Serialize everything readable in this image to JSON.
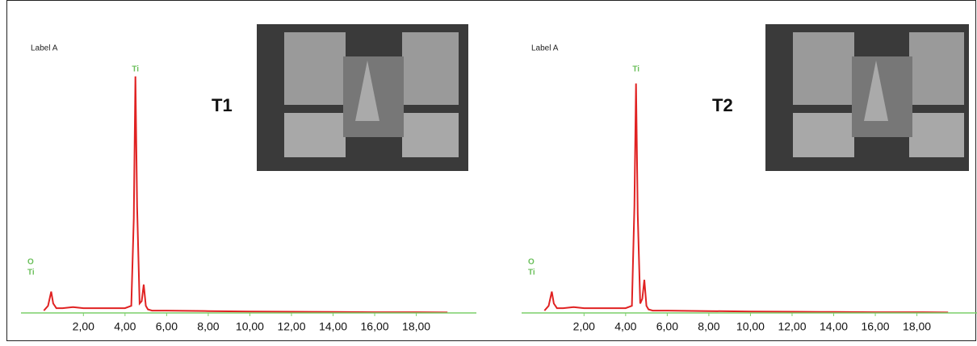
{
  "chart_data": [
    {
      "type": "line",
      "subtitle": "Label A",
      "title": "T1",
      "annotations": [
        "O",
        "Ti",
        "Ti"
      ],
      "x": [
        0.1,
        0.3,
        0.45,
        0.55,
        0.7,
        1.0,
        1.5,
        2.0,
        3.0,
        4.0,
        4.3,
        4.42,
        4.5,
        4.58,
        4.7,
        4.8,
        4.9,
        5.0,
        5.1,
        5.3,
        6.0,
        8.0,
        10.0,
        12.0,
        14.0,
        16.0,
        18.0,
        19.5
      ],
      "series": [
        {
          "name": "T1",
          "color": "#e02222",
          "values": [
            1,
            3,
            9,
            4,
            2,
            2,
            2.5,
            2,
            2,
            2,
            3,
            40,
            100,
            45,
            4,
            5,
            12,
            3,
            1.5,
            1,
            1,
            0.8,
            0.6,
            0.5,
            0.4,
            0.3,
            0.3,
            0.2
          ]
        }
      ],
      "xlim": [
        -1,
        20.5
      ],
      "ylim": [
        0,
        105
      ],
      "xticks": [
        {
          "value": 2,
          "label": "2,00"
        },
        {
          "value": 4,
          "label": "4,00"
        },
        {
          "value": 6,
          "label": "6,00"
        },
        {
          "value": 8,
          "label": "8,00"
        },
        {
          "value": 10,
          "label": "10,00"
        },
        {
          "value": 12,
          "label": "12,00"
        },
        {
          "value": 14,
          "label": "14,00"
        },
        {
          "value": 16,
          "label": "16,00"
        },
        {
          "value": 18,
          "label": "18,00"
        }
      ],
      "axis_color": "#7ccf6a"
    },
    {
      "type": "line",
      "subtitle": "Label A",
      "title": "T2",
      "annotations": [
        "O",
        "Ti",
        "Ti"
      ],
      "x": [
        0.1,
        0.3,
        0.45,
        0.55,
        0.7,
        1.0,
        1.5,
        2.0,
        3.0,
        4.0,
        4.3,
        4.42,
        4.5,
        4.58,
        4.7,
        4.8,
        4.9,
        5.0,
        5.1,
        5.3,
        6.0,
        8.0,
        10.0,
        12.0,
        14.0,
        16.0,
        18.0,
        19.5
      ],
      "series": [
        {
          "name": "T2",
          "color": "#e02222",
          "values": [
            1,
            3,
            9,
            4,
            2,
            2,
            2.5,
            2,
            2,
            2,
            3,
            45,
            97,
            42,
            4,
            6,
            14,
            3,
            1.5,
            1,
            1,
            0.8,
            0.6,
            0.5,
            0.4,
            0.3,
            0.3,
            0.2
          ]
        }
      ],
      "xlim": [
        -1,
        20.5
      ],
      "ylim": [
        0,
        105
      ],
      "xticks": [
        {
          "value": 2,
          "label": "2,00"
        },
        {
          "value": 4,
          "label": "4,00"
        },
        {
          "value": 6,
          "label": "6,00"
        },
        {
          "value": 8,
          "label": "8,00"
        },
        {
          "value": 10,
          "label": "10,00"
        },
        {
          "value": 12,
          "label": "12,00"
        },
        {
          "value": 14,
          "label": "14,00"
        },
        {
          "value": 16,
          "label": "16,00"
        },
        {
          "value": 18,
          "label": "18,00"
        }
      ],
      "axis_color": "#7ccf6a"
    }
  ]
}
